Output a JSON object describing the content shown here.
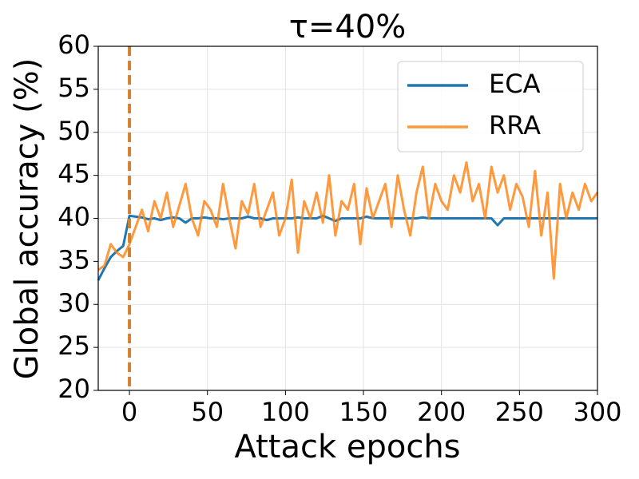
{
  "chart_data": {
    "type": "line",
    "title": "τ=40%",
    "x_label": "Attack epochs",
    "y_label": "Global accuracy (%)",
    "x": [
      -20,
      -16,
      -12,
      -8,
      -4,
      0,
      4,
      8,
      12,
      16,
      20,
      24,
      28,
      32,
      36,
      40,
      44,
      48,
      52,
      56,
      60,
      64,
      68,
      72,
      76,
      80,
      84,
      88,
      92,
      96,
      100,
      104,
      108,
      112,
      116,
      120,
      124,
      128,
      132,
      136,
      140,
      144,
      148,
      152,
      156,
      160,
      164,
      168,
      172,
      176,
      180,
      184,
      188,
      192,
      196,
      200,
      204,
      208,
      212,
      216,
      220,
      224,
      228,
      232,
      236,
      240,
      244,
      248,
      252,
      256,
      260,
      264,
      268,
      272,
      276,
      280,
      284,
      288,
      292,
      296,
      300
    ],
    "series": [
      {
        "name": "ECA",
        "color": "#1f77b4",
        "values": [
          32.8,
          34.2,
          35.5,
          36.2,
          36.8,
          40.3,
          40.2,
          40.1,
          39.9,
          40,
          39.8,
          40,
          40.1,
          40,
          39.5,
          40,
          40,
          40.1,
          40,
          40,
          39.9,
          40,
          40,
          40,
          40.2,
          40,
          40,
          39.8,
          40,
          40,
          40,
          40,
          40.1,
          40,
          40,
          40,
          40.3,
          40,
          39.7,
          40,
          40,
          40,
          40,
          40.2,
          40,
          40,
          40,
          40,
          40,
          40,
          40,
          40,
          40.1,
          40,
          40,
          40,
          40,
          40,
          40,
          40,
          40,
          40,
          40,
          40,
          39.2,
          40,
          40,
          40,
          40,
          40,
          40,
          40,
          40,
          40,
          40,
          40,
          40,
          40,
          40,
          40,
          40
        ]
      },
      {
        "name": "RRA",
        "color": "#ff7f0e",
        "values": [
          34,
          34.5,
          37,
          36,
          35.5,
          37,
          39,
          41,
          38.5,
          42,
          40,
          43,
          39,
          41.5,
          44,
          40,
          38,
          42,
          41,
          39,
          44,
          40,
          36.5,
          42,
          40.5,
          44,
          39,
          41,
          43,
          38,
          40,
          44.5,
          36,
          42,
          40,
          43,
          39.5,
          45,
          38,
          42,
          41,
          44,
          37,
          43.5,
          40,
          42,
          44,
          39,
          45,
          41,
          38,
          43,
          46,
          40,
          44,
          42,
          41,
          45,
          43,
          46.5,
          42,
          44,
          40,
          46,
          43,
          45,
          41,
          44,
          42.5,
          39,
          45.5,
          38,
          43,
          33,
          44,
          40,
          43,
          41,
          44,
          42,
          43
        ]
      }
    ],
    "xlim": [
      -20,
      300
    ],
    "ylim": [
      20,
      60
    ],
    "xticks": [
      0,
      50,
      100,
      150,
      200,
      250,
      300
    ],
    "yticks": [
      20,
      25,
      30,
      35,
      40,
      45,
      50,
      55,
      60
    ],
    "grid": true,
    "legend": "upper right",
    "vline_x": 0,
    "vline_color": "#d2822f"
  }
}
